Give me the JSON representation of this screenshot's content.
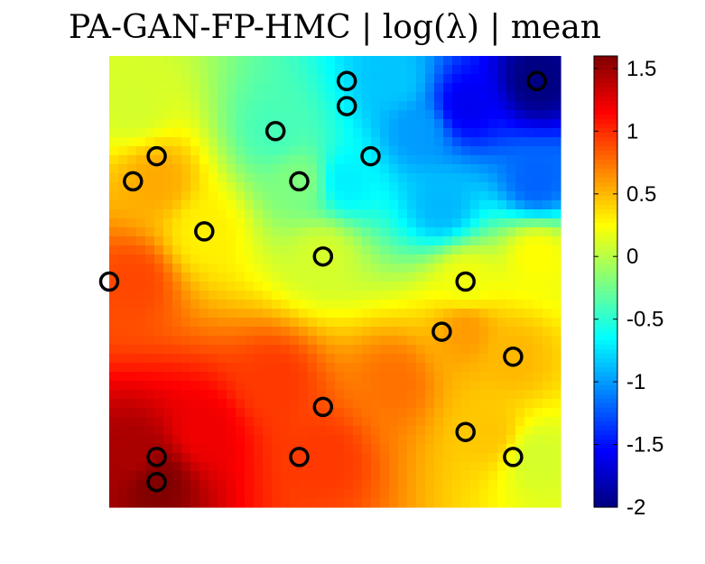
{
  "chart_data": {
    "type": "heatmap",
    "title": "PA-GAN-FP-HMC |  log(λ) | mean",
    "xlabel": "",
    "ylabel": "",
    "xlim": [
      0,
      19
    ],
    "ylim": [
      0,
      18
    ],
    "grid": false,
    "colormap": "jet",
    "colorbar": {
      "range": [
        -2,
        1.6
      ],
      "ticks": [
        1.5,
        1,
        0.5,
        0,
        -0.5,
        -1,
        -1.5,
        -2
      ],
      "tick_labels": [
        "1.5",
        "1",
        "0.5",
        "0",
        "-0.5",
        "-1",
        "-1.5",
        "-2"
      ]
    },
    "field_anchors": [
      {
        "x": 2,
        "y": 1,
        "v": 1.6
      },
      {
        "x": 1,
        "y": 2,
        "v": 1.45
      },
      {
        "x": 4,
        "y": 3,
        "v": 1.2
      },
      {
        "x": 9,
        "y": 2,
        "v": 0.95
      },
      {
        "x": 7,
        "y": 5,
        "v": 0.95
      },
      {
        "x": 12,
        "y": 5,
        "v": 0.75
      },
      {
        "x": 16,
        "y": 3,
        "v": 0.45
      },
      {
        "x": 18,
        "y": 2,
        "v": 0.1
      },
      {
        "x": 15,
        "y": 7,
        "v": 0.6
      },
      {
        "x": 17,
        "y": 6,
        "v": 0.5
      },
      {
        "x": 1,
        "y": 9,
        "v": 0.9
      },
      {
        "x": 2,
        "y": 13,
        "v": 0.55
      },
      {
        "x": 4,
        "y": 11,
        "v": 0.3
      },
      {
        "x": 9,
        "y": 10,
        "v": 0.1
      },
      {
        "x": 15,
        "y": 9,
        "v": 0.2
      },
      {
        "x": 18,
        "y": 10,
        "v": 0.25
      },
      {
        "x": 1,
        "y": 16,
        "v": 0.1
      },
      {
        "x": 7,
        "y": 15,
        "v": -0.4
      },
      {
        "x": 8,
        "y": 13,
        "v": -0.2
      },
      {
        "x": 10,
        "y": 13,
        "v": -0.7
      },
      {
        "x": 14,
        "y": 12,
        "v": -0.9
      },
      {
        "x": 13,
        "y": 15,
        "v": -1.0
      },
      {
        "x": 12,
        "y": 17,
        "v": -0.85
      },
      {
        "x": 15,
        "y": 16,
        "v": -1.6
      },
      {
        "x": 18,
        "y": 17,
        "v": -2.0
      },
      {
        "x": 18,
        "y": 13,
        "v": -1.2
      }
    ],
    "points": [
      {
        "x": 18,
        "y": 17
      },
      {
        "x": 10,
        "y": 17
      },
      {
        "x": 10,
        "y": 16
      },
      {
        "x": 7,
        "y": 15
      },
      {
        "x": 2,
        "y": 14
      },
      {
        "x": 11,
        "y": 14
      },
      {
        "x": 1,
        "y": 13
      },
      {
        "x": 8,
        "y": 13
      },
      {
        "x": 4,
        "y": 11
      },
      {
        "x": 9,
        "y": 10
      },
      {
        "x": 0,
        "y": 9
      },
      {
        "x": 15,
        "y": 9
      },
      {
        "x": 14,
        "y": 7
      },
      {
        "x": 17,
        "y": 6
      },
      {
        "x": 9,
        "y": 4
      },
      {
        "x": 15,
        "y": 3
      },
      {
        "x": 2,
        "y": 2
      },
      {
        "x": 8,
        "y": 2
      },
      {
        "x": 17,
        "y": 2
      },
      {
        "x": 2,
        "y": 1
      }
    ]
  }
}
